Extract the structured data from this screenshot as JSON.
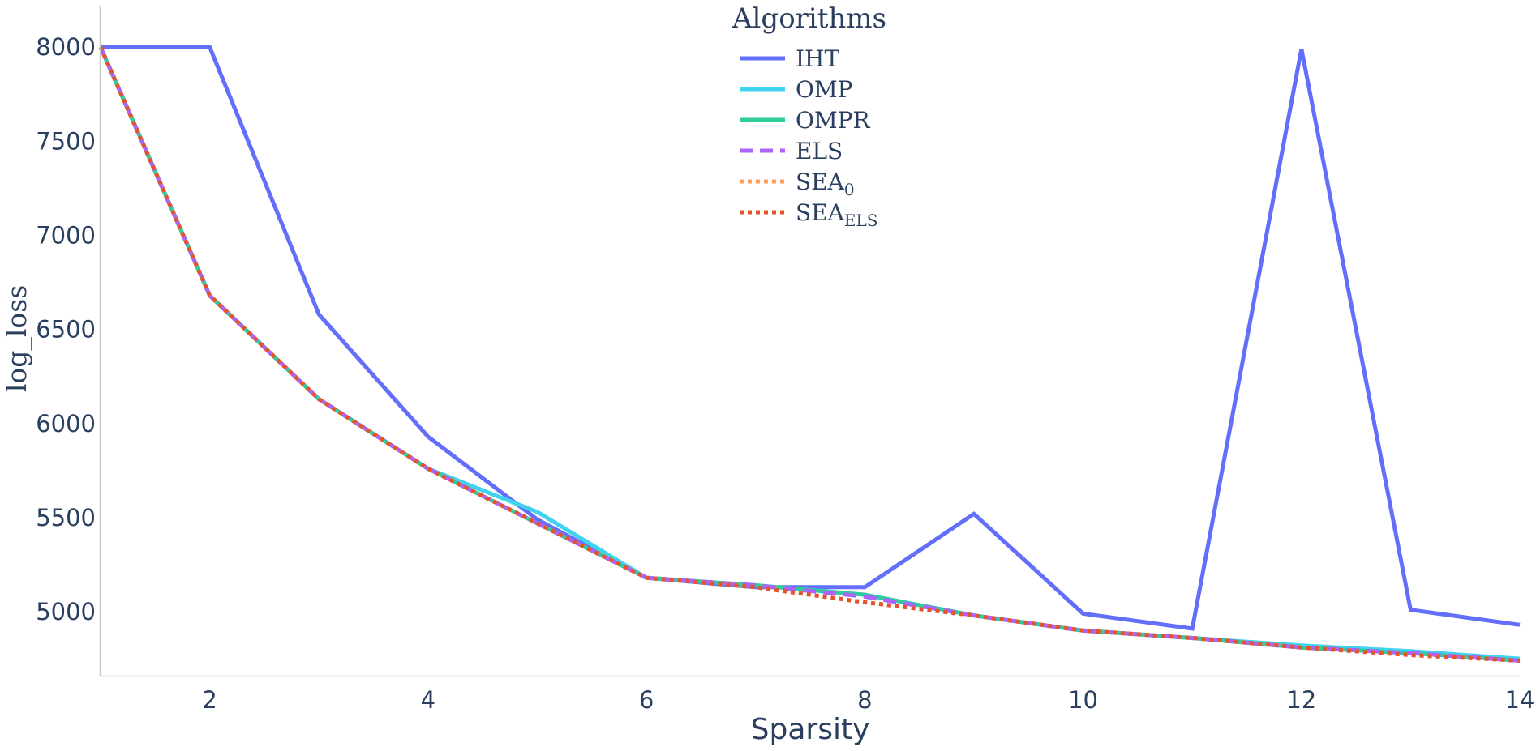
{
  "chart_data": {
    "type": "line",
    "title": "",
    "xlabel": "Sparsity",
    "ylabel": "log_loss",
    "xlim": [
      1,
      14
    ],
    "ylim": [
      4660,
      8100
    ],
    "xticks": [
      2,
      4,
      6,
      8,
      10,
      12,
      14
    ],
    "yticks": [
      5000,
      5500,
      6000,
      6500,
      7000,
      7500,
      8000
    ],
    "grid": false,
    "legend": {
      "title": "Algorithms",
      "position": "top-center"
    },
    "x": [
      1,
      2,
      3,
      4,
      5,
      6,
      7,
      8,
      9,
      10,
      11,
      12,
      13,
      14
    ],
    "series": [
      {
        "name": "IHT",
        "name_sub": "",
        "color": "#636efa",
        "dash": "solid",
        "values": [
          8000,
          8000,
          6580,
          5930,
          5490,
          5180,
          5130,
          5130,
          5520,
          4990,
          4910,
          7990,
          5010,
          4930
        ]
      },
      {
        "name": "OMP",
        "name_sub": "",
        "color": "#3fd3f0",
        "dash": "solid",
        "values": [
          8000,
          6680,
          6130,
          5760,
          5530,
          5180,
          5140,
          5090,
          4980,
          4900,
          4860,
          4820,
          4790,
          4750
        ]
      },
      {
        "name": "OMPR",
        "name_sub": "",
        "color": "#2fcc9c",
        "dash": "solid",
        "values": [
          8000,
          6680,
          6130,
          5760,
          5470,
          5180,
          5140,
          5090,
          4980,
          4900,
          4860,
          4810,
          4780,
          4740
        ]
      },
      {
        "name": "ELS",
        "name_sub": "",
        "color": "#ab63fa",
        "dash": "dash",
        "values": [
          8000,
          6680,
          6130,
          5760,
          5470,
          5180,
          5140,
          5080,
          4980,
          4900,
          4860,
          4810,
          4780,
          4740
        ]
      },
      {
        "name": "SEA",
        "name_sub": "0",
        "color": "#ffa15a",
        "dash": "dot",
        "values": [
          8000,
          6680,
          6130,
          5760,
          5470,
          5180,
          5130,
          5050,
          4980,
          4900,
          4860,
          4810,
          4770,
          4740
        ]
      },
      {
        "name": "SEA",
        "name_sub": "ELS",
        "color": "#e3542e",
        "dash": "dot",
        "values": [
          8000,
          6680,
          6130,
          5760,
          5470,
          5180,
          5130,
          5050,
          4980,
          4900,
          4860,
          4810,
          4770,
          4740
        ]
      }
    ]
  }
}
